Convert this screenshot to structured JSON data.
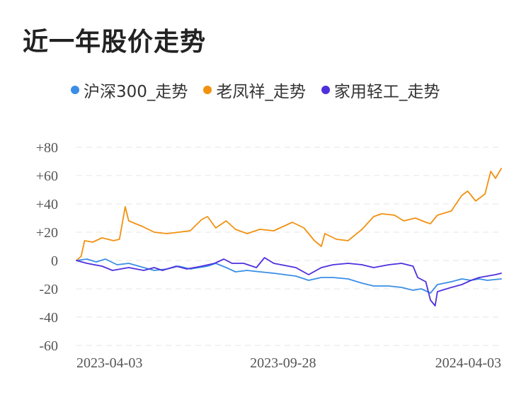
{
  "chart_data": {
    "type": "line",
    "title": "近一年股价走势",
    "x_ticks": [
      "2023-04-03",
      "2023-09-28",
      "2024-04-03"
    ],
    "y_ticks": [
      "+80",
      "+60",
      "+40",
      "+20",
      "0",
      "-20",
      "-40",
      "-60"
    ],
    "y_tick_values": [
      80,
      60,
      40,
      20,
      0,
      -20,
      -40,
      -60
    ],
    "ylim": [
      -60,
      80
    ],
    "x_start": "2023-04-03",
    "x_end": "2024-04-03",
    "grid": true,
    "legend_position": "top",
    "series": [
      {
        "name": "沪深300_走势",
        "color": "#3a8ee6",
        "points": [
          [
            "2023-04-03",
            0
          ],
          [
            "2023-04-12",
            1
          ],
          [
            "2023-04-20",
            -1
          ],
          [
            "2023-04-28",
            1
          ],
          [
            "2023-05-08",
            -3
          ],
          [
            "2023-05-18",
            -2
          ],
          [
            "2023-05-31",
            -5
          ],
          [
            "2023-06-09",
            -7
          ],
          [
            "2023-06-20",
            -6
          ],
          [
            "2023-06-30",
            -4
          ],
          [
            "2023-07-10",
            -6
          ],
          [
            "2023-07-25",
            -4
          ],
          [
            "2023-08-01",
            -2
          ],
          [
            "2023-08-10",
            -5
          ],
          [
            "2023-08-18",
            -8
          ],
          [
            "2023-08-28",
            -7
          ],
          [
            "2023-09-08",
            -8
          ],
          [
            "2023-09-20",
            -9
          ],
          [
            "2023-10-09",
            -11
          ],
          [
            "2023-10-20",
            -14
          ],
          [
            "2023-10-31",
            -12
          ],
          [
            "2023-11-10",
            -12
          ],
          [
            "2023-11-23",
            -13
          ],
          [
            "2023-12-05",
            -16
          ],
          [
            "2023-12-15",
            -18
          ],
          [
            "2023-12-28",
            -18
          ],
          [
            "2024-01-08",
            -19
          ],
          [
            "2024-01-18",
            -21
          ],
          [
            "2024-01-25",
            -20
          ],
          [
            "2024-02-02",
            -23
          ],
          [
            "2024-02-08",
            -17
          ],
          [
            "2024-02-20",
            -15
          ],
          [
            "2024-02-29",
            -13
          ],
          [
            "2024-03-08",
            -14
          ],
          [
            "2024-03-15",
            -13
          ],
          [
            "2024-03-22",
            -14
          ],
          [
            "2024-04-03",
            -13
          ]
        ]
      },
      {
        "name": "老凤祥_走势",
        "color": "#f29111",
        "points": [
          [
            "2023-04-03",
            0
          ],
          [
            "2023-04-07",
            3
          ],
          [
            "2023-04-10",
            14
          ],
          [
            "2023-04-17",
            13
          ],
          [
            "2023-04-25",
            16
          ],
          [
            "2023-05-05",
            14
          ],
          [
            "2023-05-10",
            15
          ],
          [
            "2023-05-15",
            38
          ],
          [
            "2023-05-18",
            28
          ],
          [
            "2023-05-30",
            24
          ],
          [
            "2023-06-09",
            20
          ],
          [
            "2023-06-20",
            19
          ],
          [
            "2023-06-30",
            20
          ],
          [
            "2023-07-10",
            21
          ],
          [
            "2023-07-20",
            29
          ],
          [
            "2023-07-25",
            31
          ],
          [
            "2023-08-01",
            23
          ],
          [
            "2023-08-10",
            28
          ],
          [
            "2023-08-18",
            22
          ],
          [
            "2023-08-28",
            19
          ],
          [
            "2023-09-08",
            22
          ],
          [
            "2023-09-20",
            21
          ],
          [
            "2023-10-06",
            27
          ],
          [
            "2023-10-16",
            23
          ],
          [
            "2023-10-25",
            14
          ],
          [
            "2023-10-31",
            10
          ],
          [
            "2023-11-03",
            19
          ],
          [
            "2023-11-13",
            15
          ],
          [
            "2023-11-23",
            14
          ],
          [
            "2023-12-05",
            22
          ],
          [
            "2023-12-15",
            31
          ],
          [
            "2023-12-22",
            33
          ],
          [
            "2024-01-02",
            32
          ],
          [
            "2024-01-10",
            28
          ],
          [
            "2024-01-20",
            30
          ],
          [
            "2024-01-29",
            27
          ],
          [
            "2024-02-02",
            26
          ],
          [
            "2024-02-08",
            32
          ],
          [
            "2024-02-20",
            35
          ],
          [
            "2024-02-29",
            46
          ],
          [
            "2024-03-05",
            49
          ],
          [
            "2024-03-12",
            42
          ],
          [
            "2024-03-20",
            47
          ],
          [
            "2024-03-25",
            63
          ],
          [
            "2024-03-29",
            58
          ],
          [
            "2024-04-03",
            65
          ]
        ]
      },
      {
        "name": "家用轻工_走势",
        "color": "#4f2fdd",
        "points": [
          [
            "2023-04-03",
            0
          ],
          [
            "2023-04-12",
            -2
          ],
          [
            "2023-04-25",
            -4
          ],
          [
            "2023-05-04",
            -7
          ],
          [
            "2023-05-18",
            -5
          ],
          [
            "2023-05-31",
            -7
          ],
          [
            "2023-06-09",
            -5
          ],
          [
            "2023-06-16",
            -7
          ],
          [
            "2023-06-28",
            -4
          ],
          [
            "2023-07-07",
            -6
          ],
          [
            "2023-07-20",
            -4
          ],
          [
            "2023-07-31",
            -2
          ],
          [
            "2023-08-08",
            1
          ],
          [
            "2023-08-15",
            -2
          ],
          [
            "2023-08-25",
            -2
          ],
          [
            "2023-09-05",
            -5
          ],
          [
            "2023-09-12",
            2
          ],
          [
            "2023-09-20",
            -2
          ],
          [
            "2023-10-09",
            -5
          ],
          [
            "2023-10-20",
            -10
          ],
          [
            "2023-10-31",
            -5
          ],
          [
            "2023-11-10",
            -3
          ],
          [
            "2023-11-23",
            -2
          ],
          [
            "2023-12-05",
            -3
          ],
          [
            "2023-12-15",
            -5
          ],
          [
            "2023-12-28",
            -3
          ],
          [
            "2024-01-08",
            -2
          ],
          [
            "2024-01-18",
            -4
          ],
          [
            "2024-01-22",
            -12
          ],
          [
            "2024-01-29",
            -15
          ],
          [
            "2024-02-02",
            -28
          ],
          [
            "2024-02-06",
            -32
          ],
          [
            "2024-02-08",
            -22
          ],
          [
            "2024-02-20",
            -19
          ],
          [
            "2024-02-29",
            -17
          ],
          [
            "2024-03-08",
            -14
          ],
          [
            "2024-03-15",
            -12
          ],
          [
            "2024-03-22",
            -11
          ],
          [
            "2024-03-29",
            -10
          ],
          [
            "2024-04-03",
            -9
          ]
        ]
      }
    ]
  }
}
